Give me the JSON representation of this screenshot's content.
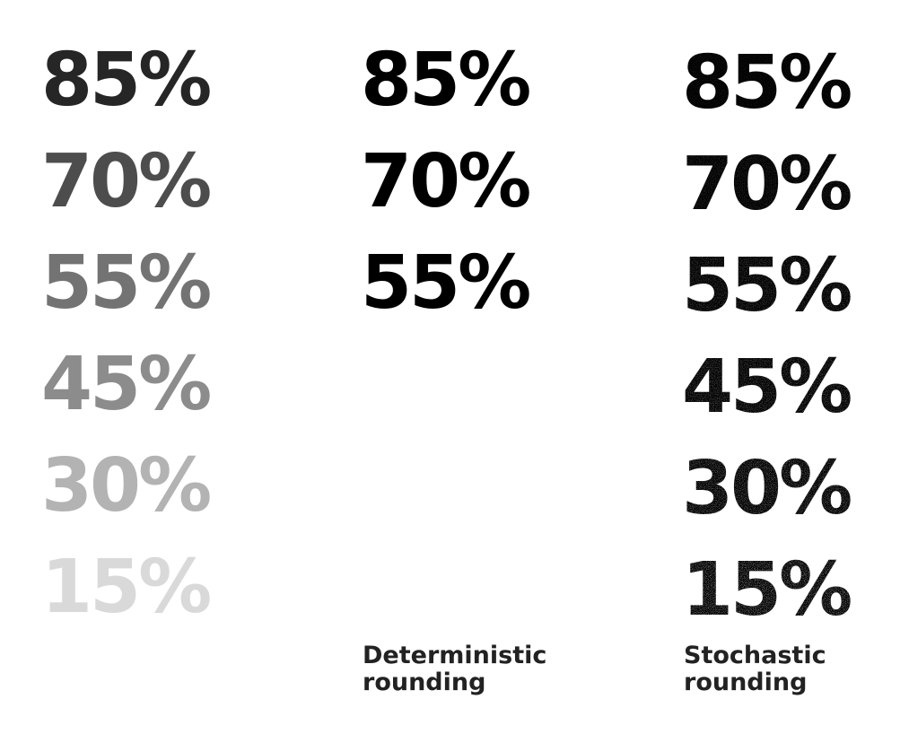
{
  "original": [
    {
      "label": "85%",
      "level": 0.85,
      "color": "#262626"
    },
    {
      "label": "70%",
      "level": 0.7,
      "color": "#4d4d4d"
    },
    {
      "label": "55%",
      "level": 0.55,
      "color": "#737373"
    },
    {
      "label": "45%",
      "level": 0.45,
      "color": "#8c8c8c"
    },
    {
      "label": "30%",
      "level": 0.3,
      "color": "#b3b3b3"
    },
    {
      "label": "15%",
      "level": 0.15,
      "color": "#d9d9d9"
    }
  ],
  "deterministic": {
    "labels": [
      "85%",
      "70%",
      "55%"
    ],
    "caption_line1": "Deterministic",
    "caption_line2": "rounding"
  },
  "stochastic": {
    "labels": [
      "85%",
      "70%",
      "55%",
      "45%",
      "30%",
      "15%"
    ],
    "levels": [
      0.85,
      0.7,
      0.55,
      0.45,
      0.3,
      0.15
    ],
    "caption_line1": "Stochastic",
    "caption_line2": "rounding"
  }
}
